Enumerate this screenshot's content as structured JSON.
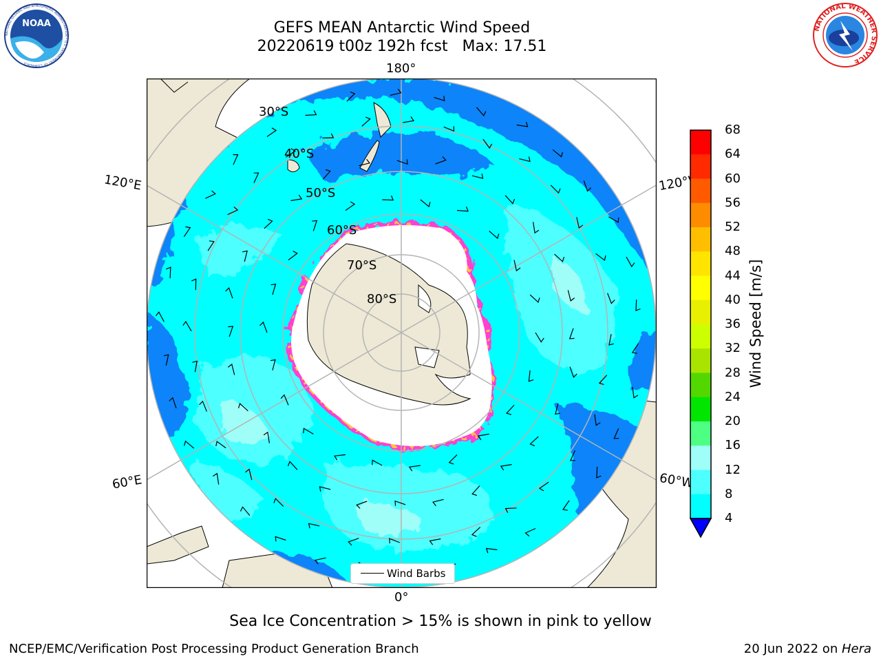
{
  "header": {
    "title": "GEFS MEAN Antarctic Wind Speed",
    "subtitle": "20220619 t00z 192h fcst   Max: 17.51"
  },
  "logos": {
    "noaa_text": "NOAA",
    "noaa_ring_text": "NATIONAL OCEANIC AND ATMOSPHERIC ADMINISTRATION • U.S. DEPARTMENT OF COMMERCE",
    "nws_ring_text": "NATIONAL WEATHER SERVICE"
  },
  "map": {
    "projection": "south polar stereographic",
    "longitude_labels": {
      "top": "180°",
      "left_upper": "120°E",
      "right_upper": "120°W",
      "left_lower": "60°E",
      "right_lower": "60°W",
      "bottom": "0°"
    },
    "latitude_labels": [
      "30°S",
      "40°S",
      "50°S",
      "60°S",
      "70°S",
      "80°S"
    ],
    "legend_label": "Wind Barbs",
    "colors": {
      "land": "#ede9d6",
      "ice_shelf": "#ffffff",
      "speed_4_8": "#0b84f9",
      "speed_8_12": "#00ffff",
      "speed_12_16": "#4dffff",
      "speed_16_20": "#9ffff8",
      "sea_ice_edge_pink": "#ff3fd0",
      "sea_ice_edge_yellow": "#ffc04a",
      "gridline": "#b4b4b4"
    }
  },
  "colorbar": {
    "label": "Wind Speed [m/s]",
    "ticks": [
      "68",
      "64",
      "60",
      "56",
      "52",
      "48",
      "44",
      "40",
      "36",
      "32",
      "28",
      "24",
      "20",
      "16",
      "12",
      "8",
      "4"
    ],
    "colors": [
      "#0000ff",
      "#0b84f9",
      "#00ffff",
      "#4dffff",
      "#9ffff8",
      "#4dff82",
      "#00e600",
      "#52d800",
      "#a8e400",
      "#ccff00",
      "#e8f000",
      "#ffff00",
      "#ffe400",
      "#ffbf00",
      "#ff8c00",
      "#ff5a00",
      "#ff2a00",
      "#ff0000"
    ]
  },
  "notes": {
    "sea_ice": "Sea Ice Concentration > 15% is shown in pink to yellow",
    "credit": "NCEP/EMC/Verification Post Processing Product Generation Branch",
    "date": "20 Jun 2022 on ",
    "machine": "Hera"
  }
}
